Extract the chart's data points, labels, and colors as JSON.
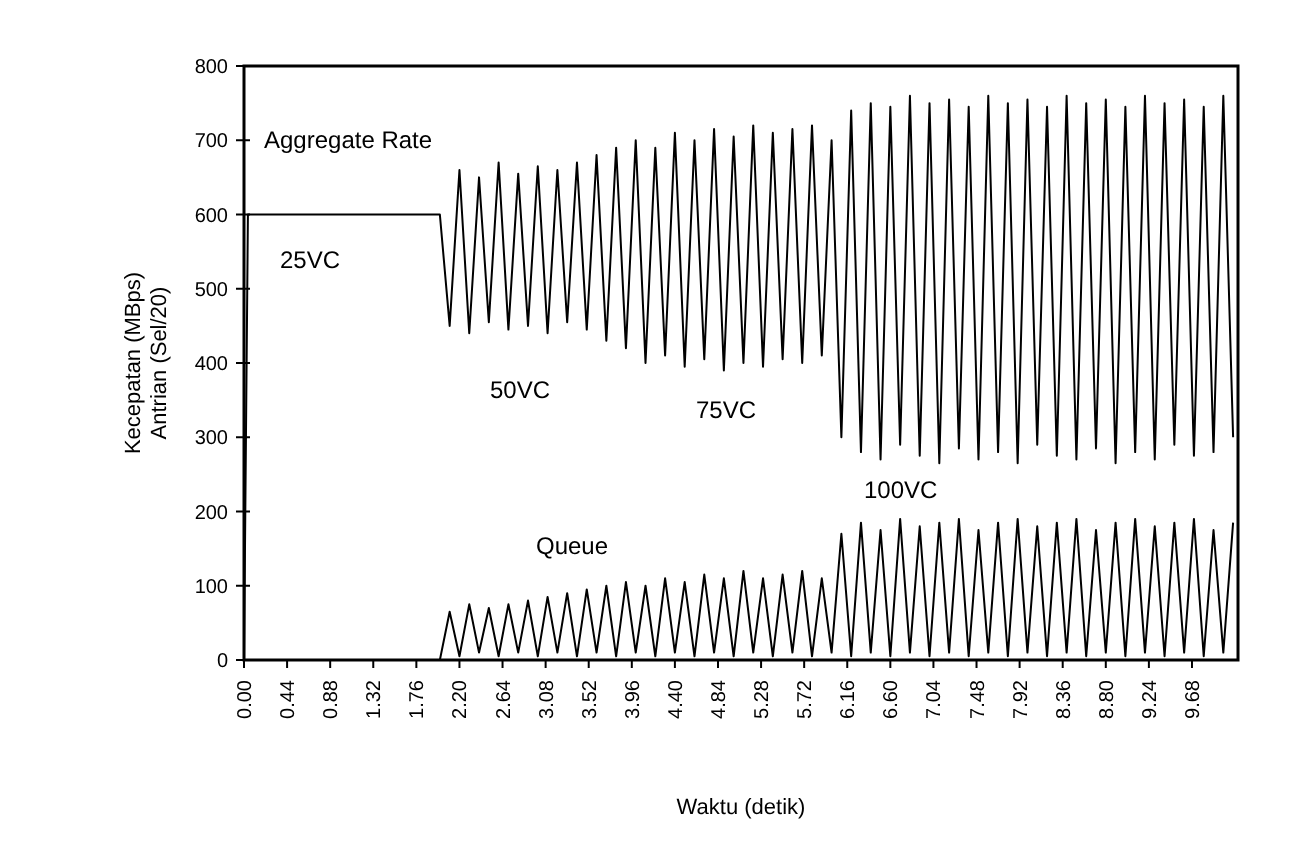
{
  "chart_data": {
    "type": "line",
    "xlabel": "Waktu (detik)",
    "ylabel": "Kecepatan (MBps)\nAntrian (Sel/20)",
    "xlim": [
      0,
      10.15
    ],
    "ylim": [
      0,
      800
    ],
    "xticks": [
      {
        "value": 0,
        "label": "0.00"
      },
      0.44,
      0.88,
      1.32,
      1.76,
      {
        "value": 2.2,
        "label": "2.20"
      },
      2.64,
      3.08,
      3.52,
      3.96,
      {
        "value": 4.4,
        "label": "4.40"
      },
      4.84,
      5.28,
      5.72,
      6.16,
      {
        "value": 6.6,
        "label": "6.60"
      },
      7.04,
      7.48,
      7.92,
      8.36,
      {
        "value": 8.8,
        "label": "8.80"
      },
      9.24,
      9.68
    ],
    "yticks": [
      0,
      100,
      200,
      300,
      400,
      500,
      600,
      700,
      800
    ],
    "grid": false,
    "marker": "none",
    "line_style": "solid",
    "annotations": [
      "Aggregate Rate",
      "25VC",
      "50VC",
      "75VC",
      "100VC",
      "Queue"
    ],
    "series": [
      {
        "color": "#000000",
        "x": [
          0,
          0.02,
          0.04,
          2.0,
          2.1,
          2.2,
          2.3,
          2.4,
          2.5,
          2.6,
          2.7,
          2.8,
          2.9,
          3.0,
          3.1,
          3.2,
          3.3,
          3.4,
          3.5,
          3.6,
          3.7,
          3.8,
          3.9,
          4.0,
          4.1,
          4.2,
          4.3,
          4.4,
          4.5,
          4.6,
          4.7,
          4.8,
          4.9,
          5.0,
          5.1,
          5.2,
          5.3,
          5.4,
          5.5,
          5.6,
          5.7,
          5.8,
          5.9,
          6.0,
          6.1,
          6.2,
          6.3,
          6.4,
          6.5,
          6.6,
          6.7,
          6.8,
          6.9,
          7.0,
          7.1,
          7.2,
          7.3,
          7.4,
          7.5,
          7.6,
          7.7,
          7.8,
          7.9,
          8.0,
          8.1,
          8.2,
          8.3,
          8.4,
          8.5,
          8.6,
          8.7,
          8.8,
          8.9,
          9.0,
          9.1,
          9.2,
          9.3,
          9.4,
          9.5,
          9.6,
          9.7,
          9.8,
          9.9,
          10.0,
          10.1
        ],
        "values": [
          0,
          300,
          600,
          600,
          450,
          660,
          440,
          650,
          455,
          670,
          445,
          655,
          450,
          665,
          440,
          660,
          455,
          670,
          445,
          680,
          430,
          690,
          420,
          700,
          400,
          690,
          410,
          710,
          395,
          700,
          405,
          715,
          390,
          705,
          400,
          720,
          395,
          710,
          405,
          715,
          400,
          720,
          410,
          700,
          300,
          740,
          280,
          750,
          270,
          745,
          290,
          760,
          275,
          750,
          265,
          755,
          285,
          745,
          270,
          760,
          280,
          750,
          265,
          755,
          290,
          745,
          275,
          760,
          270,
          750,
          285,
          755,
          265,
          745,
          280,
          760,
          270,
          750,
          290,
          755,
          275,
          745,
          280,
          760,
          300
        ]
      },
      {
        "color": "#000000",
        "x": [
          0,
          2.0,
          2.1,
          2.2,
          2.3,
          2.4,
          2.5,
          2.6,
          2.7,
          2.8,
          2.9,
          3.0,
          3.1,
          3.2,
          3.3,
          3.4,
          3.5,
          3.6,
          3.7,
          3.8,
          3.9,
          4.0,
          4.1,
          4.2,
          4.3,
          4.4,
          4.5,
          4.6,
          4.7,
          4.8,
          4.9,
          5.0,
          5.1,
          5.2,
          5.3,
          5.4,
          5.5,
          5.6,
          5.7,
          5.8,
          5.9,
          6.0,
          6.1,
          6.2,
          6.3,
          6.4,
          6.5,
          6.6,
          6.7,
          6.8,
          6.9,
          7.0,
          7.1,
          7.2,
          7.3,
          7.4,
          7.5,
          7.6,
          7.7,
          7.8,
          7.9,
          8.0,
          8.1,
          8.2,
          8.3,
          8.4,
          8.5,
          8.6,
          8.7,
          8.8,
          8.9,
          9.0,
          9.1,
          9.2,
          9.3,
          9.4,
          9.5,
          9.6,
          9.7,
          9.8,
          9.9,
          10.0,
          10.1
        ],
        "values": [
          0,
          0,
          65,
          5,
          75,
          10,
          70,
          5,
          75,
          10,
          80,
          5,
          85,
          10,
          90,
          5,
          95,
          10,
          100,
          5,
          105,
          10,
          100,
          5,
          110,
          10,
          105,
          5,
          115,
          10,
          110,
          5,
          120,
          10,
          110,
          5,
          115,
          10,
          120,
          5,
          110,
          10,
          170,
          5,
          185,
          10,
          175,
          5,
          190,
          10,
          180,
          5,
          185,
          10,
          190,
          5,
          175,
          10,
          185,
          5,
          190,
          10,
          180,
          5,
          185,
          10,
          190,
          5,
          175,
          10,
          185,
          5,
          190,
          10,
          180,
          5,
          185,
          10,
          190,
          5,
          175,
          10,
          185
        ]
      }
    ]
  }
}
